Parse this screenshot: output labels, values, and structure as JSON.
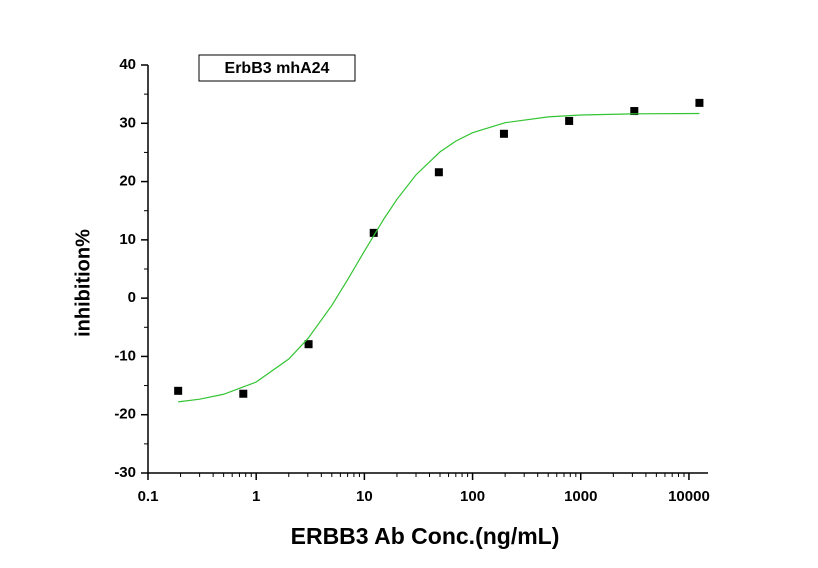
{
  "chart_data": {
    "type": "scatter",
    "annotation": "ErbB3 mhA24",
    "xlabel": "ERBB3 Ab Conc.(ng/mL)",
    "ylabel": "inhibition%",
    "xscale": "log",
    "xlim": [
      0.1,
      15000
    ],
    "ylim": [
      -30,
      40
    ],
    "xticks": [
      0.1,
      1,
      10,
      100,
      1000,
      10000
    ],
    "yticks": [
      -30,
      -20,
      -10,
      0,
      10,
      20,
      30,
      40
    ],
    "series": [
      {
        "type": "scatter",
        "color": "#000000",
        "x": [
          0.19,
          0.76,
          3.05,
          12.2,
          48.8,
          195,
          781,
          3125,
          12500
        ],
        "values": [
          -15.9,
          -16.4,
          -7.9,
          11.2,
          21.6,
          28.2,
          30.4,
          32.1,
          33.5
        ]
      },
      {
        "type": "line",
        "color": "#33c433",
        "x": [
          0.19,
          0.3,
          0.5,
          1,
          2,
          3,
          5,
          7,
          10,
          15,
          20,
          30,
          50,
          70,
          100,
          200,
          500,
          1000,
          3000,
          12500
        ],
        "values": [
          -17.8,
          -17.34,
          -16.49,
          -14.39,
          -10.44,
          -6.96,
          -1.25,
          3.16,
          8.06,
          13.47,
          16.96,
          21.15,
          25.09,
          26.94,
          28.39,
          30.1,
          31.1,
          31.42,
          31.62,
          31.68
        ]
      }
    ]
  }
}
